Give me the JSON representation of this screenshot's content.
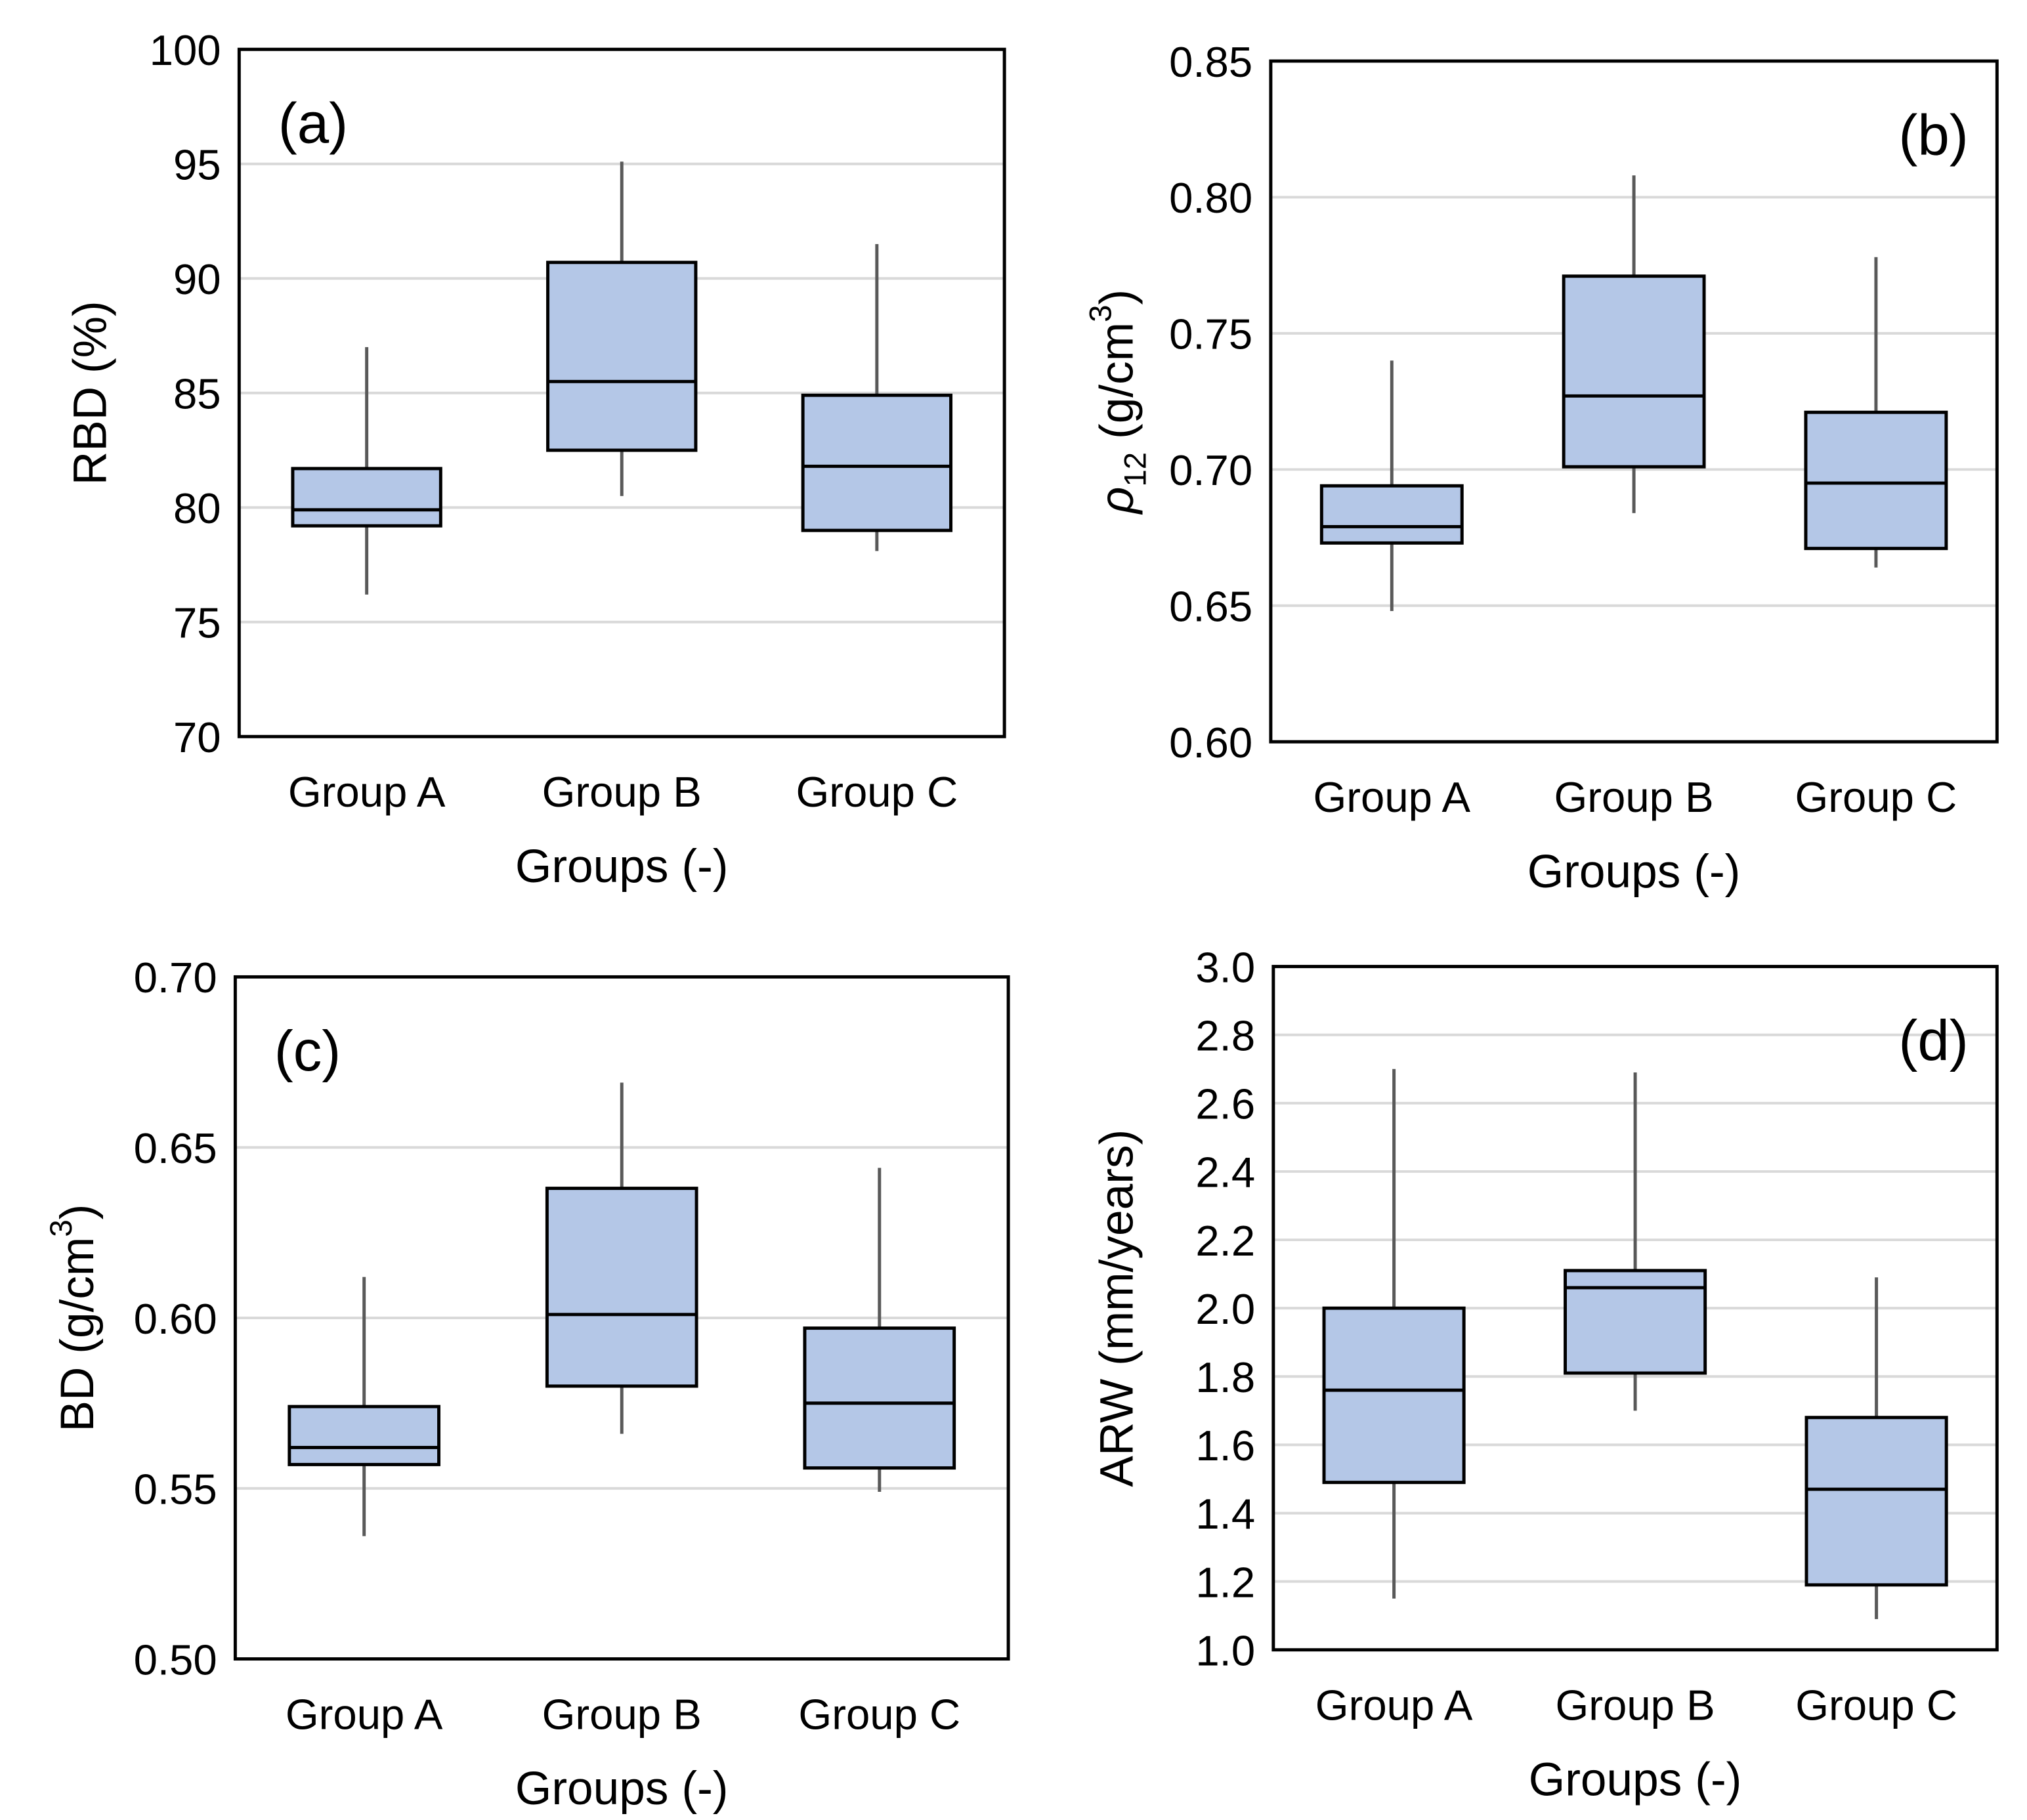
{
  "chart_data": [
    {
      "type": "box",
      "label": "(a)",
      "label_corner": "top-left",
      "xlabel": "Groups (-)",
      "ylabel": [
        {
          "text": "RBD (%)"
        }
      ],
      "categories": [
        "Group A",
        "Group B",
        "Group C"
      ],
      "color": "#b4c7e7",
      "grid": true,
      "low": [
        76.2,
        80.5,
        78.1
      ],
      "q1": [
        79.2,
        82.5,
        79.0
      ],
      "median": [
        79.9,
        85.5,
        81.8
      ],
      "q3": [
        81.7,
        90.7,
        84.9
      ],
      "high": [
        87.0,
        95.1,
        91.5
      ],
      "ylim": [
        70,
        100
      ],
      "yticks": [
        70,
        75,
        80,
        85,
        90,
        95,
        100
      ]
    },
    {
      "type": "box",
      "label": "(b)",
      "label_corner": "top-right",
      "xlabel": "Groups (-)",
      "ylabel": [
        {
          "text": "ρ",
          "style": "italic"
        },
        {
          "text": "12",
          "style": "sub"
        },
        {
          "text": " (g/cm"
        },
        {
          "text": "3",
          "style": "sup"
        },
        {
          "text": ")"
        }
      ],
      "categories": [
        "Group A",
        "Group B",
        "Group C"
      ],
      "color": "#b4c7e7",
      "grid": true,
      "low": [
        0.648,
        0.684,
        0.664
      ],
      "q1": [
        0.673,
        0.701,
        0.671
      ],
      "median": [
        0.679,
        0.727,
        0.695
      ],
      "q3": [
        0.694,
        0.771,
        0.721
      ],
      "high": [
        0.74,
        0.808,
        0.778
      ],
      "ylim": [
        0.6,
        0.85
      ],
      "yticks": [
        {
          "value": 0.6,
          "label": "0.60"
        },
        0.65,
        {
          "value": 0.7,
          "label": "0.70"
        },
        0.75,
        {
          "value": 0.8,
          "label": "0.80"
        },
        0.85
      ]
    },
    {
      "type": "box",
      "label": "(c)",
      "label_corner": "top-left",
      "xlabel": "Groups (-)",
      "ylabel": [
        {
          "text": "BD (g/cm"
        },
        {
          "text": "3",
          "style": "sup"
        },
        {
          "text": ")"
        }
      ],
      "categories": [
        "Group A",
        "Group B",
        "Group C"
      ],
      "color": "#b4c7e7",
      "grid": true,
      "low": [
        0.536,
        0.566,
        0.549
      ],
      "q1": [
        0.557,
        0.58,
        0.556
      ],
      "median": [
        0.562,
        0.601,
        0.575
      ],
      "q3": [
        0.574,
        0.638,
        0.597
      ],
      "high": [
        0.612,
        0.669,
        0.644
      ],
      "ylim": [
        0.5,
        0.7
      ],
      "yticks": [
        {
          "value": 0.5,
          "label": "0.50"
        },
        0.55,
        {
          "value": 0.6,
          "label": "0.60"
        },
        0.65,
        {
          "value": 0.7,
          "label": "0.70"
        }
      ]
    },
    {
      "type": "box",
      "label": "(d)",
      "label_corner": "top-right",
      "xlabel": "Groups (-)",
      "ylabel": [
        {
          "text": "ARW (mm/years)"
        }
      ],
      "categories": [
        "Group A",
        "Group B",
        "Group C"
      ],
      "color": "#b4c7e7",
      "grid": true,
      "low": [
        1.15,
        1.7,
        1.09
      ],
      "q1": [
        1.49,
        1.81,
        1.19
      ],
      "median": [
        1.76,
        2.06,
        1.47
      ],
      "q3": [
        2.0,
        2.11,
        1.68
      ],
      "high": [
        2.7,
        2.69,
        2.09
      ],
      "ylim": [
        1,
        3
      ],
      "yticks": [
        {
          "value": 1,
          "label": "1.0"
        },
        1.2,
        1.4,
        1.6,
        1.8,
        {
          "value": 2,
          "label": "2.0"
        },
        2.2,
        2.4,
        2.6,
        2.8,
        {
          "value": 3,
          "label": "3.0"
        }
      ]
    }
  ]
}
